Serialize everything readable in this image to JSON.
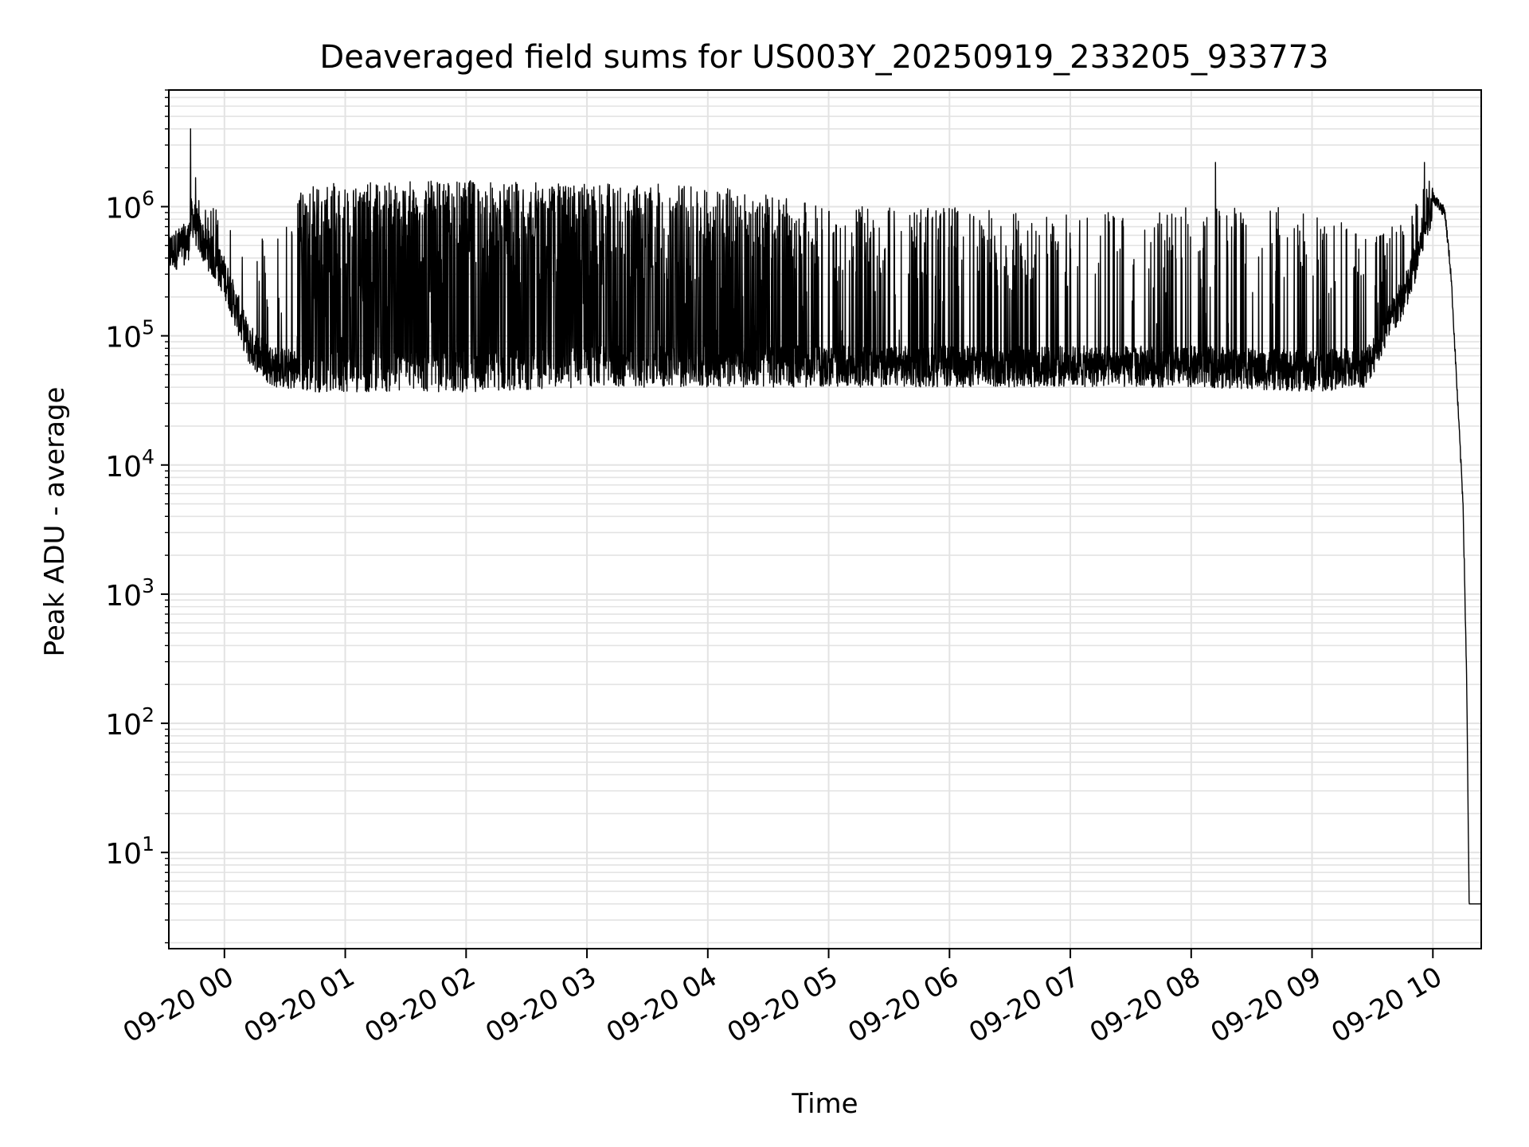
{
  "chart_data": {
    "type": "line",
    "title": "Deaveraged field sums for US003Y_20250919_233205_933773",
    "xlabel": "Time",
    "ylabel": "Peak ADU - average",
    "yscale": "log",
    "ylim": [
      1.8,
      8000000
    ],
    "xlim_hours": [
      -0.46,
      10.4
    ],
    "grid": "both",
    "x_ticks": [
      {
        "hour": 0,
        "label": "09-20 00"
      },
      {
        "hour": 1,
        "label": "09-20 01"
      },
      {
        "hour": 2,
        "label": "09-20 02"
      },
      {
        "hour": 3,
        "label": "09-20 03"
      },
      {
        "hour": 4,
        "label": "09-20 04"
      },
      {
        "hour": 5,
        "label": "09-20 05"
      },
      {
        "hour": 6,
        "label": "09-20 06"
      },
      {
        "hour": 7,
        "label": "09-20 07"
      },
      {
        "hour": 8,
        "label": "09-20 08"
      },
      {
        "hour": 9,
        "label": "09-20 09"
      },
      {
        "hour": 10,
        "label": "09-20 10"
      }
    ],
    "y_ticks": [
      {
        "value": 10,
        "exp": "1"
      },
      {
        "value": 100,
        "exp": "2"
      },
      {
        "value": 1000,
        "exp": "3"
      },
      {
        "value": 10000,
        "exp": "4"
      },
      {
        "value": 100000,
        "exp": "5"
      },
      {
        "value": 1000000,
        "exp": "6"
      }
    ],
    "y_tick_base": "10",
    "series": [
      {
        "name": "field sums",
        "color": "#000000",
        "envelope": [
          {
            "hour": -0.46,
            "base": 450000,
            "peak": 500000
          },
          {
            "hour": -0.3,
            "base": 550000,
            "peak": 700000
          },
          {
            "hour": -0.27,
            "base": 900000,
            "peak": 4000000
          },
          {
            "hour": -0.2,
            "base": 600000,
            "peak": 900000
          },
          {
            "hour": 0.0,
            "base": 300000,
            "peak": 1100000
          },
          {
            "hour": 0.2,
            "base": 90000,
            "peak": 600000
          },
          {
            "hour": 0.4,
            "base": 60000,
            "peak": 600000
          },
          {
            "hour": 0.65,
            "base": 55000,
            "peak": 1500000
          },
          {
            "hour": 2.0,
            "base": 55000,
            "peak": 1600000
          },
          {
            "hour": 3.0,
            "base": 60000,
            "peak": 1500000
          },
          {
            "hour": 4.0,
            "base": 60000,
            "peak": 1500000
          },
          {
            "hour": 5.0,
            "base": 60000,
            "peak": 1000000
          },
          {
            "hour": 6.0,
            "base": 60000,
            "peak": 1000000
          },
          {
            "hour": 7.0,
            "base": 60000,
            "peak": 900000
          },
          {
            "hour": 8.0,
            "base": 60000,
            "peak": 1000000
          },
          {
            "hour": 9.0,
            "base": 55000,
            "peak": 1000000
          },
          {
            "hour": 9.45,
            "base": 60000,
            "peak": 600000
          },
          {
            "hour": 9.8,
            "base": 250000,
            "peak": 800000
          },
          {
            "hour": 10.0,
            "base": 1200000,
            "peak": 2000000
          },
          {
            "hour": 10.1,
            "base": 900000,
            "peak": 1000000
          },
          {
            "hour": 10.15,
            "base": 300000,
            "peak": 300000
          },
          {
            "hour": 10.25,
            "base": 5000,
            "peak": 5000
          },
          {
            "hour": 10.28,
            "base": 200,
            "peak": 200
          },
          {
            "hour": 10.3,
            "base": 4,
            "peak": 4
          },
          {
            "hour": 10.4,
            "base": 4,
            "peak": 4
          }
        ],
        "spikes": [
          {
            "hour": -0.28,
            "value": 4000000
          },
          {
            "hour": 8.2,
            "value": 2200000
          },
          {
            "hour": 9.93,
            "value": 2200000
          }
        ]
      }
    ]
  }
}
